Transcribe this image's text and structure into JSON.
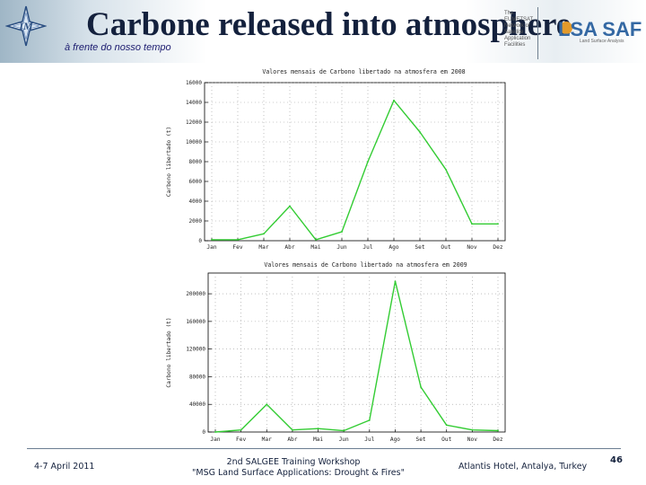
{
  "header": {
    "title": "Carbone released into atmosphere",
    "subtitle": "à frente do nosso tempo",
    "logo_text": "IM",
    "partner_text": "The EUMETSAT Network of Satellite Application Facilities",
    "partner_logo": "LSA SAF",
    "partner_tagline": "Land Surface Analysis"
  },
  "chart_data": [
    {
      "type": "line",
      "title": "Valores mensais de Carbono libertado na atmosfera em 2008",
      "xlabel": "",
      "ylabel": "Carbono libertado (t)",
      "categories": [
        "Jan",
        "Fev",
        "Mar",
        "Abr",
        "Mai",
        "Jun",
        "Jul",
        "Ago",
        "Set",
        "Out",
        "Nov",
        "Dez"
      ],
      "values": [
        100,
        100,
        700,
        3500,
        100,
        900,
        8000,
        14200,
        11000,
        7200,
        1700,
        1700
      ],
      "yticks": [
        0,
        2000,
        4000,
        6000,
        8000,
        10000,
        12000,
        14000,
        16000
      ],
      "ytick_labels": [
        "0",
        "2000",
        "4000",
        "6000",
        "8000",
        "10000",
        "12000",
        "14000",
        "16000"
      ],
      "ylim": [
        0,
        16000
      ],
      "color": "#33cc33",
      "grid": "dotted"
    },
    {
      "type": "line",
      "title": "Valores mensais de Carbono libertado na atmosfera em 2009",
      "xlabel": "",
      "ylabel": "Carbono libertado (t)",
      "categories": [
        "Jan",
        "Fev",
        "Mar",
        "Abr",
        "Mai",
        "Jun",
        "Jul",
        "Ago",
        "Set",
        "Out",
        "Nov",
        "Dez"
      ],
      "values": [
        0,
        3000,
        40000,
        3000,
        5000,
        2000,
        17000,
        218000,
        65000,
        10000,
        3000,
        2000
      ],
      "yticks": [
        0,
        40000,
        80000,
        120000,
        160000,
        200000
      ],
      "ytick_labels": [
        "0",
        "40000",
        "80000",
        "120000",
        "160000",
        "200000"
      ],
      "ylim": [
        0,
        230000
      ],
      "color": "#33cc33",
      "grid": "dotted"
    }
  ],
  "footer": {
    "date": "4-7 April 2011",
    "event_line1": "2nd SALGEE Training Workshop",
    "event_line2": "\"MSG Land Surface Applications: Drought & Fires\"",
    "venue": "Atlantis Hotel, Antalya, Turkey",
    "page_number": "46"
  }
}
